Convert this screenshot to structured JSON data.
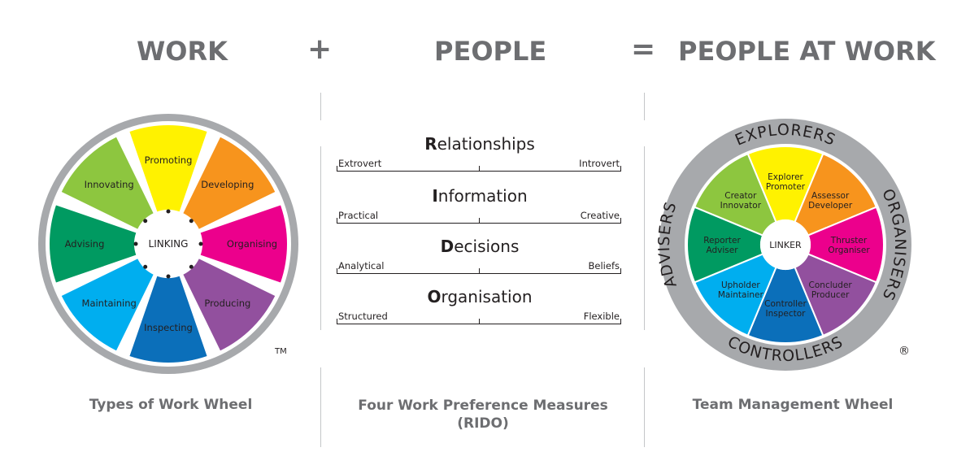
{
  "header": {
    "work": "WORK",
    "plus": "+",
    "people": "PEOPLE",
    "equals": "=",
    "people_at_work": "PEOPLE AT WORK"
  },
  "types_wheel": {
    "hub": "LINKING",
    "segments": [
      {
        "label": "Promoting",
        "color": "#fff200"
      },
      {
        "label": "Developing",
        "color": "#f7941d"
      },
      {
        "label": "Organising",
        "color": "#ec008c"
      },
      {
        "label": "Producing",
        "color": "#92509e"
      },
      {
        "label": "Inspecting",
        "color": "#0b6fba"
      },
      {
        "label": "Maintaining",
        "color": "#00aeef"
      },
      {
        "label": "Advising",
        "color": "#009a61"
      },
      {
        "label": "Innovating",
        "color": "#8dc63f"
      }
    ],
    "mark": "TM",
    "caption": "Types of Work Wheel"
  },
  "measures": {
    "items": [
      {
        "initial": "R",
        "rest": "elationships",
        "left": "Extrovert",
        "right": "Introvert"
      },
      {
        "initial": "I",
        "rest": "nformation",
        "left": "Practical",
        "right": "Creative"
      },
      {
        "initial": "D",
        "rest": "ecisions",
        "left": "Analytical",
        "right": "Beliefs"
      },
      {
        "initial": "O",
        "rest": "rganisation",
        "left": "Structured",
        "right": "Flexible"
      }
    ],
    "caption_line1": "Four Work Preference Measures",
    "caption_line2": "(RIDO)"
  },
  "team_wheel": {
    "hub": "LINKER",
    "segments": [
      {
        "line1": "Explorer",
        "line2": "Promoter",
        "color": "#fff200"
      },
      {
        "line1": "Assessor",
        "line2": "Developer",
        "color": "#f7941d"
      },
      {
        "line1": "Thruster",
        "line2": "Organiser",
        "color": "#ec008c"
      },
      {
        "line1": "Concluder",
        "line2": "Producer",
        "color": "#92509e"
      },
      {
        "line1": "Controller",
        "line2": "Inspector",
        "color": "#0b6fba"
      },
      {
        "line1": "Upholder",
        "line2": "Maintainer",
        "color": "#00aeef"
      },
      {
        "line1": "Reporter",
        "line2": "Adviser",
        "color": "#009a61"
      },
      {
        "line1": "Creator",
        "line2": "Innovator",
        "color": "#8dc63f"
      }
    ],
    "ring_labels": {
      "top": "EXPLORERS",
      "right": "ORGANISERS",
      "bottom": "CONTROLLERS",
      "left": "ADVISERS"
    },
    "mark": "®",
    "caption": "Team Management Wheel"
  },
  "colors": {
    "text_grey": "#6d6e71",
    "ring_grey": "#a7a9ac",
    "divider": "#c4c6c8"
  }
}
